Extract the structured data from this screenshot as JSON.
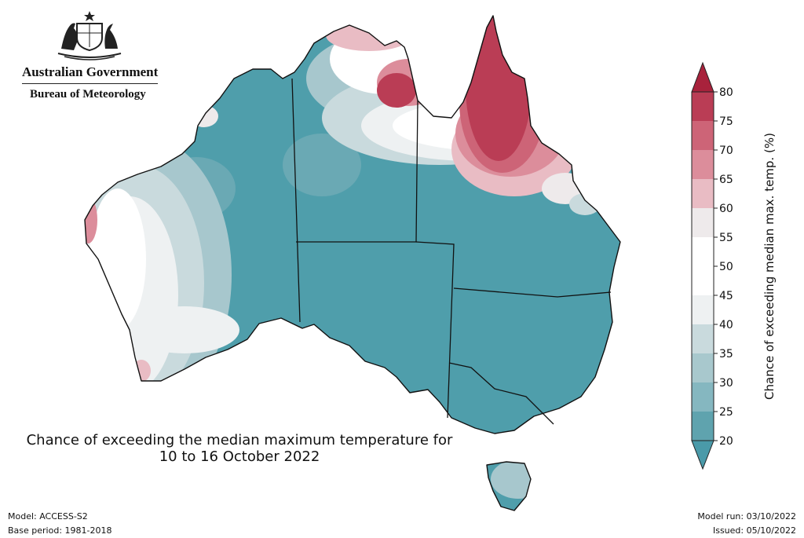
{
  "header": {
    "gov_name": "Australian Government",
    "agency_name": "Bureau of Meteorology"
  },
  "map": {
    "title_line1": "Chance of exceeding the median maximum temperature for",
    "title_line2": "10 to 16 October 2022",
    "region": "Australia",
    "dominant_category": "20-25",
    "warm_regions": [
      "Cape York Peninsula",
      "Top End north coast",
      "Western Australia west coast"
    ]
  },
  "legend": {
    "title": "Chance of exceeding median max. temp. (%)",
    "ticks": [
      "80",
      "75",
      "70",
      "65",
      "60",
      "55",
      "50",
      "45",
      "40",
      "35",
      "30",
      "25",
      "20"
    ],
    "colors": [
      "#ba3d55",
      "#cd6477",
      "#dc8d9b",
      "#e9bcc4",
      "#eeeaeb",
      "#ffffff",
      "#ffffff",
      "#eef1f2",
      "#c9dadd",
      "#a8c8cd",
      "#85b7c0",
      "#5fa3ae"
    ],
    "top_arrow_color": "#a8223c",
    "bottom_arrow_color": "#4a9aa9"
  },
  "footer": {
    "model": "Model: ACCESS-S2",
    "base_period": "Base period: 1981-2018",
    "model_run": "Model run: 03/10/2022",
    "issued": "Issued: 05/10/2022"
  }
}
